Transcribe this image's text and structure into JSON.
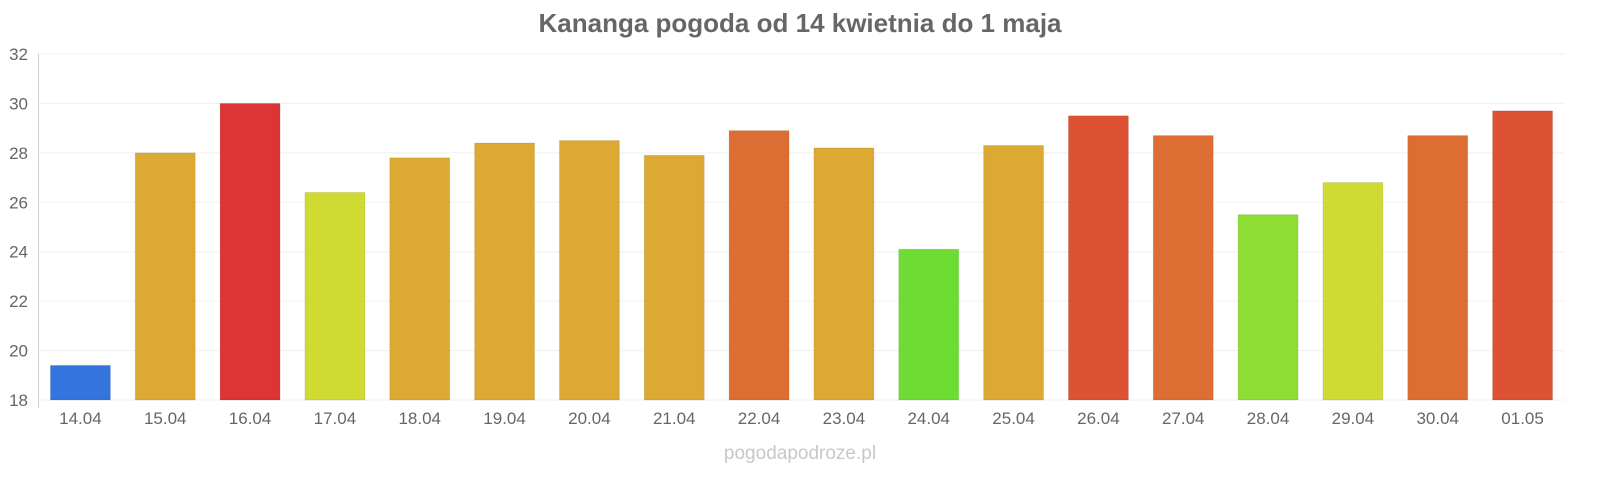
{
  "chart_data": {
    "type": "bar",
    "title": "Kananga pogoda od 14 kwietnia do 1 maja",
    "xlabel": "",
    "ylabel": "",
    "ylim": [
      18,
      32
    ],
    "yticks": [
      "18",
      "20",
      "22",
      "24",
      "26",
      "28",
      "30",
      "32"
    ],
    "grid": true,
    "categories": [
      "14.04",
      "15.04",
      "16.04",
      "17.04",
      "18.04",
      "19.04",
      "20.04",
      "21.04",
      "22.04",
      "23.04",
      "24.04",
      "25.04",
      "26.04",
      "27.04",
      "28.04",
      "29.04",
      "30.04",
      "01.05"
    ],
    "values": [
      19.4,
      28.0,
      30.0,
      26.4,
      27.8,
      28.4,
      28.5,
      27.9,
      28.9,
      28.2,
      24.1,
      28.3,
      29.5,
      28.7,
      25.5,
      26.8,
      28.7,
      29.7
    ],
    "colors": [
      "#3375dd",
      "#dca933",
      "#dd3535",
      "#cfdb33",
      "#dca933",
      "#dca933",
      "#dca933",
      "#dca933",
      "#dd6e33",
      "#dca933",
      "#6edd33",
      "#dca933",
      "#dd5233",
      "#dd6e33",
      "#8ddd33",
      "#cfdb33",
      "#dd6e33",
      "#dd5233"
    ]
  },
  "footer": "pogodapodroze.pl"
}
